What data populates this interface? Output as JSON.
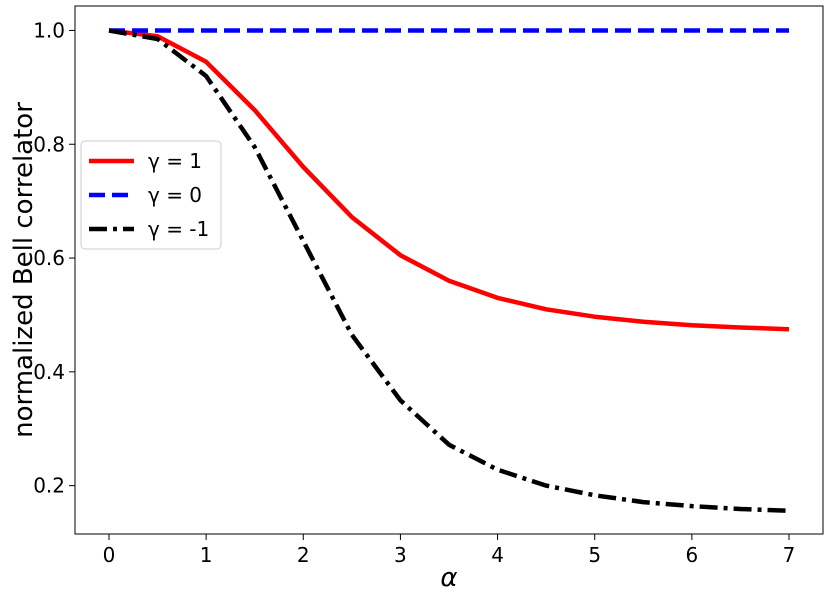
{
  "chart_data": {
    "type": "line",
    "title": "",
    "xlabel": "α",
    "ylabel": "normalized Bell correlator",
    "xlim": [
      -0.35,
      7.35
    ],
    "ylim": [
      0.115,
      1.043
    ],
    "xticks": [
      0,
      1,
      2,
      3,
      4,
      5,
      6,
      7
    ],
    "yticks": [
      0.2,
      0.4,
      0.6,
      0.8,
      1.0
    ],
    "xtick_labels": [
      "0",
      "1",
      "2",
      "3",
      "4",
      "5",
      "6",
      "7"
    ],
    "ytick_labels": [
      "0.2",
      "0.4",
      "0.6",
      "0.8",
      "1.0"
    ],
    "grid": false,
    "legend_position": "center-left",
    "series": [
      {
        "name": "γ = 1",
        "color": "#ff0000",
        "style": "solid",
        "x": [
          0,
          0.5,
          1,
          1.5,
          2,
          2.5,
          3,
          3.5,
          4,
          4.5,
          5,
          5.5,
          6,
          6.5,
          7
        ],
        "y": [
          1.0,
          0.99,
          0.945,
          0.86,
          0.76,
          0.672,
          0.605,
          0.56,
          0.53,
          0.51,
          0.497,
          0.488,
          0.482,
          0.478,
          0.475
        ]
      },
      {
        "name": "γ = 0",
        "color": "#0000ff",
        "style": "dashed",
        "x": [
          0,
          0.5,
          1,
          1.5,
          2,
          2.5,
          3,
          3.5,
          4,
          4.5,
          5,
          5.5,
          6,
          6.5,
          7
        ],
        "y": [
          1.0,
          1.0,
          1.0,
          1.0,
          1.0,
          1.0,
          1.0,
          1.0,
          1.0,
          1.0,
          1.0,
          1.0,
          1.0,
          1.0,
          1.0
        ]
      },
      {
        "name": "γ = -1",
        "color": "#000000",
        "style": "dashdot",
        "x": [
          0,
          0.5,
          1,
          1.5,
          2,
          2.5,
          3,
          3.5,
          4,
          4.5,
          5,
          5.5,
          6,
          6.5,
          7
        ],
        "y": [
          1.0,
          0.985,
          0.92,
          0.795,
          0.63,
          0.465,
          0.35,
          0.272,
          0.228,
          0.2,
          0.183,
          0.171,
          0.164,
          0.159,
          0.156
        ]
      }
    ]
  }
}
